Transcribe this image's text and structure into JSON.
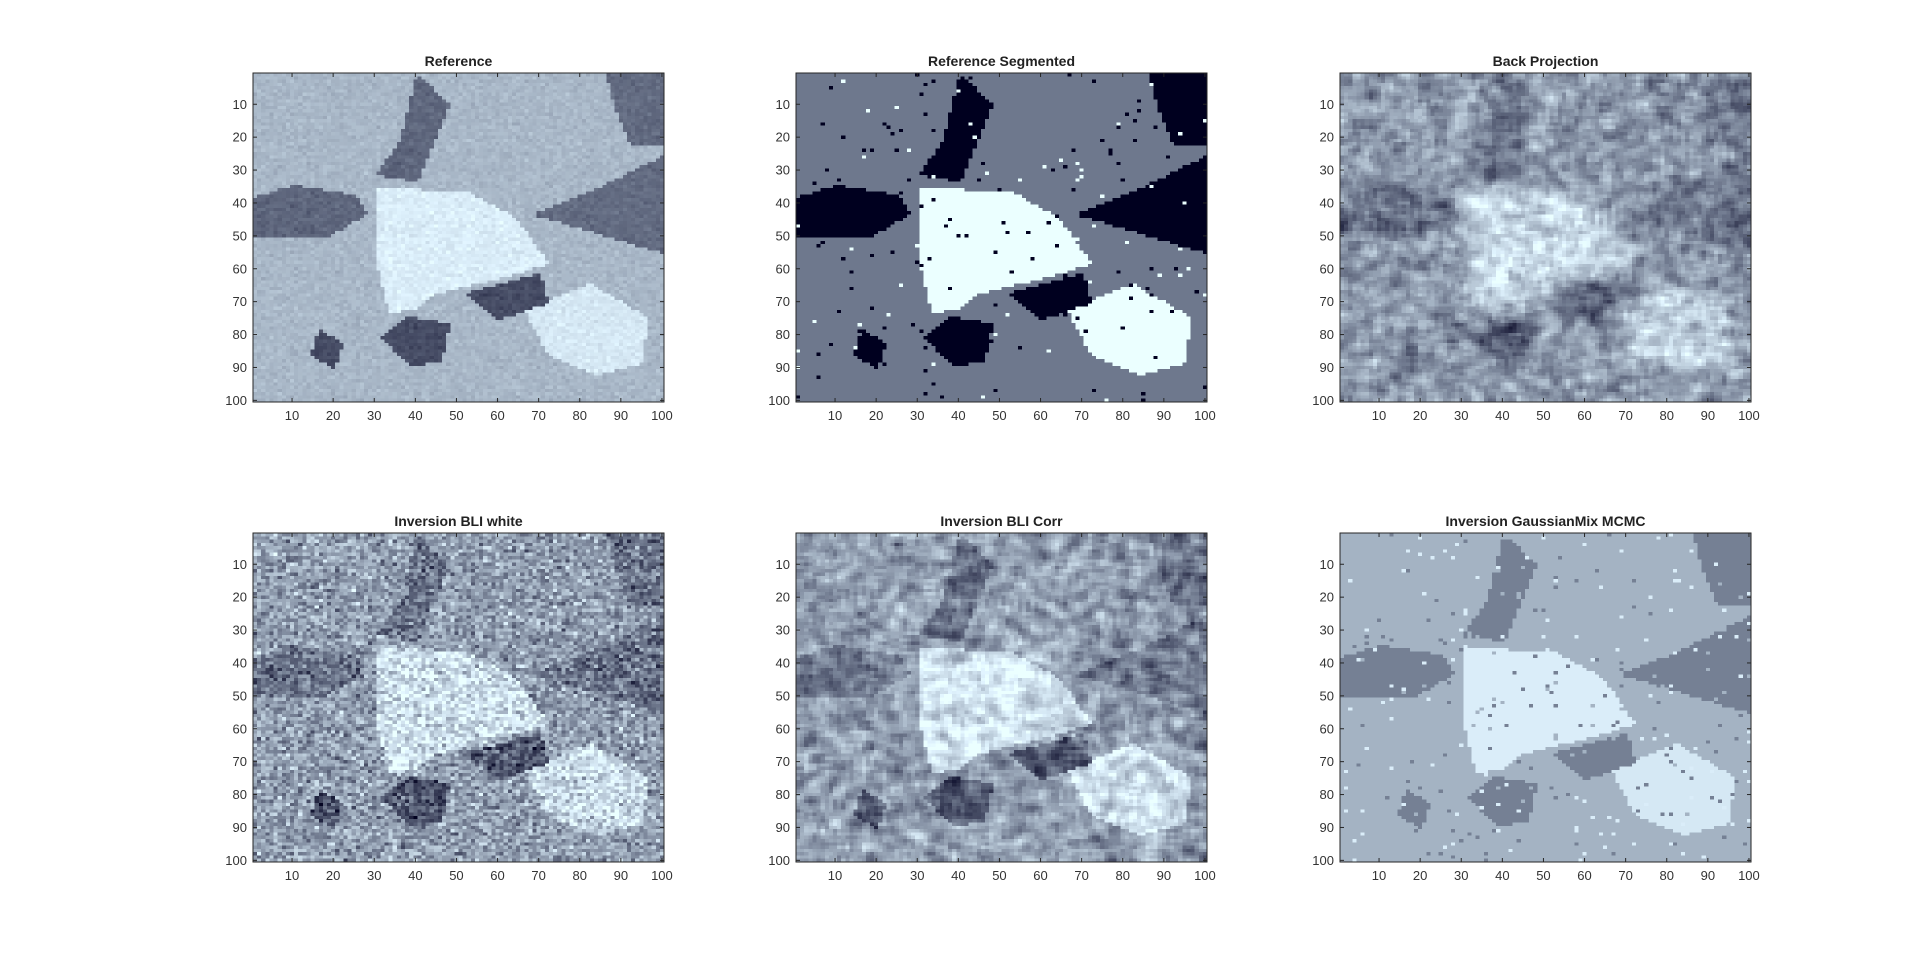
{
  "figure": {
    "colormap": "bone",
    "colors": {
      "background": "#ffffff",
      "axis": "#262626",
      "text": "#222222"
    }
  },
  "chart_data": [
    {
      "type": "heatmap",
      "title": "Reference",
      "xlim": [
        1,
        100
      ],
      "ylim": [
        1,
        100
      ],
      "xticks": [
        10,
        20,
        30,
        40,
        50,
        60,
        70,
        80,
        90,
        100
      ],
      "yticks": [
        10,
        20,
        30,
        40,
        50,
        60,
        70,
        80,
        90,
        100
      ],
      "style": "noisy",
      "levels": {
        "background": 0.72,
        "upper_right_region": 0.42,
        "left_notch": 0.4,
        "bright_central_band": 0.93,
        "bright_lower_right": 0.91,
        "dark_pockets": 0.3
      }
    },
    {
      "type": "heatmap",
      "title": "Reference Segmented",
      "xlim": [
        1,
        100
      ],
      "ylim": [
        1,
        100
      ],
      "xticks": [
        10,
        20,
        30,
        40,
        50,
        60,
        70,
        80,
        90,
        100
      ],
      "yticks": [
        10,
        20,
        30,
        40,
        50,
        60,
        70,
        80,
        90,
        100
      ],
      "style": "segmented",
      "levels": {
        "background": 0.47,
        "upper_right_region": 0.0,
        "left_notch": 0.0,
        "bright_central_band": 1.0,
        "bright_lower_right": 1.0,
        "dark_pockets": 0.0
      }
    },
    {
      "type": "heatmap",
      "title": "Back Projection",
      "xlim": [
        1,
        100
      ],
      "ylim": [
        1,
        100
      ],
      "xticks": [
        10,
        20,
        30,
        40,
        50,
        60,
        70,
        80,
        90,
        100
      ],
      "yticks": [
        10,
        20,
        30,
        40,
        50,
        60,
        70,
        80,
        90,
        100
      ],
      "style": "blurry",
      "levels": {
        "background": 0.6,
        "upper_right_region": 0.45,
        "left_notch": 0.45,
        "bright_central_band": 0.85,
        "bright_lower_right": 0.82,
        "dark_pockets": 0.35
      }
    },
    {
      "type": "heatmap",
      "title": "Inversion BLI white",
      "xlim": [
        1,
        100
      ],
      "ylim": [
        1,
        100
      ],
      "xticks": [
        10,
        20,
        30,
        40,
        50,
        60,
        70,
        80,
        90,
        100
      ],
      "yticks": [
        10,
        20,
        30,
        40,
        50,
        60,
        70,
        80,
        90,
        100
      ],
      "style": "very-noisy",
      "levels": {
        "background": 0.62,
        "upper_right_region": 0.45,
        "left_notch": 0.45,
        "bright_central_band": 0.88,
        "bright_lower_right": 0.86,
        "dark_pockets": 0.32
      }
    },
    {
      "type": "heatmap",
      "title": "Inversion BLI Corr",
      "xlim": [
        1,
        100
      ],
      "ylim": [
        1,
        100
      ],
      "xticks": [
        10,
        20,
        30,
        40,
        50,
        60,
        70,
        80,
        90,
        100
      ],
      "yticks": [
        10,
        20,
        30,
        40,
        50,
        60,
        70,
        80,
        90,
        100
      ],
      "style": "correlated",
      "levels": {
        "background": 0.62,
        "upper_right_region": 0.45,
        "left_notch": 0.45,
        "bright_central_band": 0.9,
        "bright_lower_right": 0.88,
        "dark_pockets": 0.32
      }
    },
    {
      "type": "heatmap",
      "title": "Inversion GaussianMix MCMC",
      "xlim": [
        1,
        100
      ],
      "ylim": [
        1,
        100
      ],
      "xticks": [
        10,
        20,
        30,
        40,
        50,
        60,
        70,
        80,
        90,
        100
      ],
      "yticks": [
        10,
        20,
        30,
        40,
        50,
        60,
        70,
        80,
        90,
        100
      ],
      "style": "clustered",
      "levels": {
        "background": 0.7,
        "upper_right_region": 0.5,
        "left_notch": 0.5,
        "bright_central_band": 0.93,
        "bright_lower_right": 0.91,
        "dark_pockets": 0.5
      }
    }
  ]
}
